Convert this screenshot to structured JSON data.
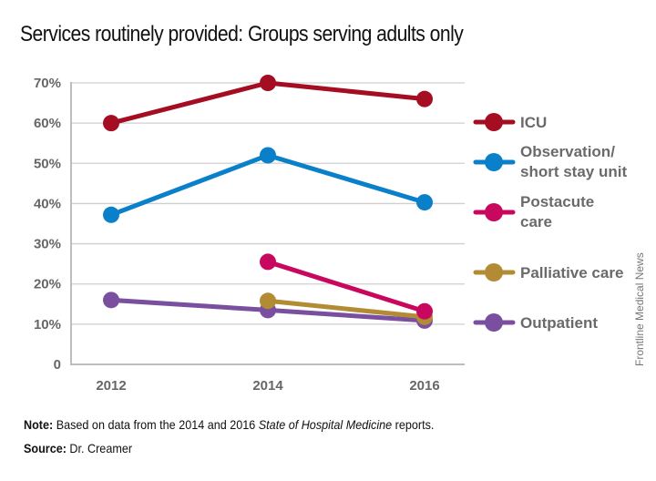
{
  "chart_data": {
    "type": "line",
    "title": "Services routinely provided: Groups serving adults only",
    "xlabel": "",
    "ylabel": "",
    "x": [
      "2012",
      "2014",
      "2016"
    ],
    "ylim": [
      0,
      70
    ],
    "yticks": [
      0,
      10,
      20,
      30,
      40,
      50,
      60,
      70
    ],
    "ytick_labels": [
      "0",
      "10%",
      "20%",
      "30%",
      "40%",
      "50%",
      "60%",
      "70%"
    ],
    "grid": true,
    "legend_position": "right",
    "series": [
      {
        "name": "ICU",
        "legend_lines": [
          "ICU"
        ],
        "color": "#a50e22",
        "values": [
          60,
          70,
          66
        ]
      },
      {
        "name": "Observation/ short stay unit",
        "legend_lines": [
          "Observation/",
          "short stay unit"
        ],
        "color": "#0a7fca",
        "values": [
          37.2,
          52,
          40.3
        ]
      },
      {
        "name": "Postacute care",
        "legend_lines": [
          "Postacute",
          "care"
        ],
        "color": "#c8075f",
        "values": [
          null,
          25.5,
          13.2
        ]
      },
      {
        "name": "Palliative care",
        "legend_lines": [
          "Palliative care"
        ],
        "color": "#b38b35",
        "values": [
          null,
          15.8,
          11.8
        ]
      },
      {
        "name": "Outpatient",
        "legend_lines": [
          "Outpatient"
        ],
        "color": "#7b4fa0",
        "values": [
          16,
          13.5,
          10.9
        ]
      }
    ]
  },
  "footer": {
    "note_label": "Note:",
    "note_text_before": " Based on data from the 2014 and 2016 ",
    "note_italic": "State of Hospital Medicine",
    "note_text_after": " reports.",
    "source_label": "Source:",
    "source_text": " Dr. Creamer"
  },
  "credit": "Frontline Medical News"
}
